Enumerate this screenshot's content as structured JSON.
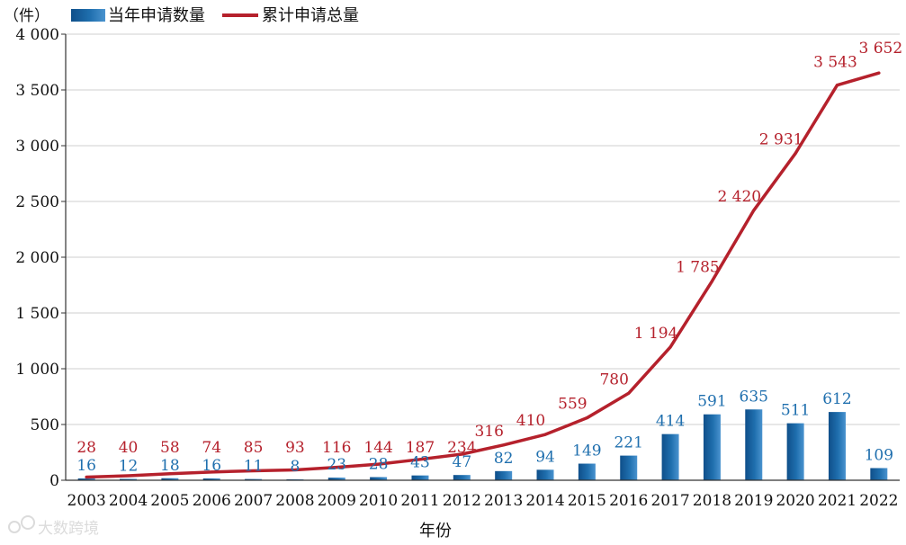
{
  "chart_data": {
    "type": "bar+line",
    "unit_label": "（件）",
    "xlabel": "年份",
    "ylim": [
      0,
      4000
    ],
    "yticks": [
      0,
      500,
      1000,
      1500,
      2000,
      2500,
      3000,
      3500,
      4000
    ],
    "ytick_labels": [
      "0",
      "500",
      "1 000",
      "1 500",
      "2 000",
      "2 500",
      "3 000",
      "3 500",
      "4 000"
    ],
    "grid": true,
    "legend_position": "top-left",
    "categories": [
      "2003",
      "2004",
      "2005",
      "2006",
      "2007",
      "2008",
      "2009",
      "2010",
      "2011",
      "2012",
      "2013",
      "2014",
      "2015",
      "2016",
      "2017",
      "2018",
      "2019",
      "2020",
      "2021",
      "2022"
    ],
    "series": [
      {
        "name": "当年申请数量",
        "type": "bar",
        "color": "#1f6fae",
        "values": [
          16,
          12,
          18,
          16,
          11,
          8,
          23,
          28,
          43,
          47,
          82,
          94,
          149,
          221,
          414,
          591,
          635,
          511,
          612,
          109
        ],
        "labels": [
          "16",
          "12",
          "18",
          "16",
          "11",
          "8",
          "23",
          "28",
          "43",
          "47",
          "82",
          "94",
          "149",
          "221",
          "414",
          "591",
          "635",
          "511",
          "612",
          "109"
        ]
      },
      {
        "name": "累计申请总量",
        "type": "line",
        "color": "#b5212c",
        "values": [
          28,
          40,
          58,
          74,
          85,
          93,
          116,
          144,
          187,
          234,
          316,
          410,
          559,
          780,
          1194,
          1785,
          2420,
          2931,
          3543,
          3652
        ],
        "labels": [
          "28",
          "40",
          "58",
          "74",
          "85",
          "93",
          "116",
          "144",
          "187",
          "234",
          "316",
          "410",
          "559",
          "780",
          "1 194",
          "1 785",
          "2 420",
          "2 931",
          "3 543",
          "3 652"
        ]
      }
    ]
  },
  "watermark": {
    "text": "大数跨境"
  }
}
